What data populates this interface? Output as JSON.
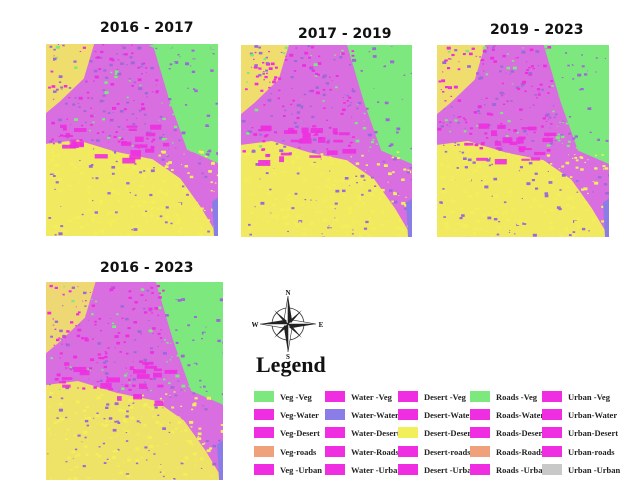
{
  "panels": [
    {
      "title": "2016 - 2017"
    },
    {
      "title": "2017 - 2019"
    },
    {
      "title": "2019 - 2023"
    },
    {
      "title": "2016 - 2023"
    }
  ],
  "legend": {
    "title": "Legend",
    "compass_labels": {
      "north": "N",
      "south": "S",
      "east": "E",
      "west": "W"
    },
    "colors": {
      "vegetation": "#7de87d",
      "water": "#8a7de8",
      "desert": "#f2f05a",
      "roads": "#f0a07a",
      "urban": "#c8c8c8",
      "change": "#ee2ee0"
    },
    "columns": [
      [
        {
          "label": "Veg -Veg",
          "color": "#7de87d"
        },
        {
          "label": "Veg-Water",
          "color": "#ee2ee0"
        },
        {
          "label": "Veg-Desert",
          "color": "#ee2ee0"
        },
        {
          "label": "Veg-roads",
          "color": "#f0a07a"
        },
        {
          "label": "Veg -Urban",
          "color": "#ee2ee0"
        }
      ],
      [
        {
          "label": "Water -Veg",
          "color": "#ee2ee0"
        },
        {
          "label": "Water-Water",
          "color": "#8a7de8"
        },
        {
          "label": "Water-Desert",
          "color": "#ee2ee0"
        },
        {
          "label": "Water-Roads",
          "color": "#ee2ee0"
        },
        {
          "label": "Water -Urban",
          "color": "#ee2ee0"
        }
      ],
      [
        {
          "label": "Desert -Veg",
          "color": "#ee2ee0"
        },
        {
          "label": "Desert-Water",
          "color": "#ee2ee0"
        },
        {
          "label": "Desert-Desert",
          "color": "#f2f05a"
        },
        {
          "label": "Desert-roads",
          "color": "#ee2ee0"
        },
        {
          "label": "Desert -Urban",
          "color": "#ee2ee0"
        }
      ],
      [
        {
          "label": "Roads -Veg",
          "color": "#7de87d"
        },
        {
          "label": "Roads-Water",
          "color": "#ee2ee0"
        },
        {
          "label": "Roads-Desert",
          "color": "#ee2ee0"
        },
        {
          "label": "Roads-Roads",
          "color": "#f0a07a"
        },
        {
          "label": "Roads -Urban",
          "color": "#ee2ee0"
        }
      ],
      [
        {
          "label": "Urban -Veg",
          "color": "#ee2ee0"
        },
        {
          "label": "Urban-Water",
          "color": "#ee2ee0"
        },
        {
          "label": "Urban-Desert",
          "color": "#ee2ee0"
        },
        {
          "label": "Urban-roads",
          "color": "#ee2ee0"
        },
        {
          "label": "Urban -Urban",
          "color": "#c8c8c8"
        }
      ]
    ]
  }
}
